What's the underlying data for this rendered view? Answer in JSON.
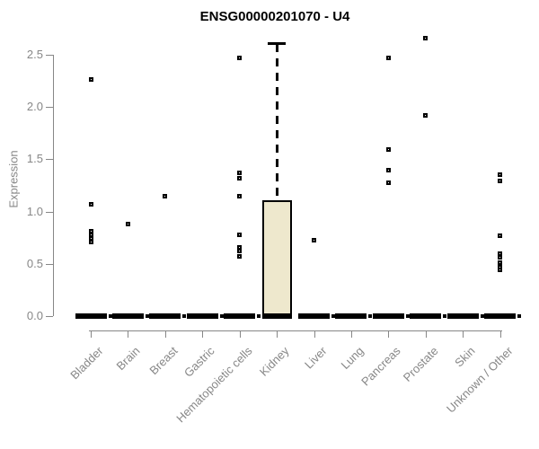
{
  "chart_data": {
    "type": "box",
    "title": "ENSG00000201070 - U4",
    "ylabel": "Expression",
    "xlabel": "",
    "ylim": [
      0,
      2.7
    ],
    "yticks": [
      "0.0",
      "0.5",
      "1.0",
      "1.5",
      "2.0",
      "2.5"
    ],
    "grid": false,
    "legend": "none",
    "categories": [
      "Bladder",
      "Brain",
      "Breast",
      "Gastric",
      "Hematopoietic cells",
      "Kidney",
      "Liver",
      "Lung",
      "Pancreas",
      "Prostate",
      "Skin",
      "Unknown / Other"
    ],
    "series": [
      {
        "category": "Bladder",
        "q1": 0,
        "median": 0,
        "q3": 0,
        "whisker_low": 0,
        "whisker_high": 0,
        "outliers": [
          2.26,
          1.07,
          0.81,
          0.78,
          0.74,
          0.71
        ]
      },
      {
        "category": "Brain",
        "q1": 0,
        "median": 0,
        "q3": 0,
        "whisker_low": 0,
        "whisker_high": 0,
        "outliers": [
          0.88
        ]
      },
      {
        "category": "Breast",
        "q1": 0,
        "median": 0,
        "q3": 0,
        "whisker_low": 0,
        "whisker_high": 0,
        "outliers": [
          1.15
        ]
      },
      {
        "category": "Gastric",
        "q1": 0,
        "median": 0,
        "q3": 0,
        "whisker_low": 0,
        "whisker_high": 0,
        "outliers": []
      },
      {
        "category": "Hematopoietic cells",
        "q1": 0,
        "median": 0,
        "q3": 0,
        "whisker_low": 0,
        "whisker_high": 0,
        "outliers": [
          2.47,
          1.37,
          1.32,
          1.15,
          0.78,
          0.66,
          0.62,
          0.57
        ]
      },
      {
        "category": "Kidney",
        "q1": 0,
        "median": 0,
        "q3": 1.11,
        "whisker_low": 0,
        "whisker_high": 2.61,
        "outliers": []
      },
      {
        "category": "Liver",
        "q1": 0,
        "median": 0,
        "q3": 0,
        "whisker_low": 0,
        "whisker_high": 0,
        "outliers": [
          0.73
        ]
      },
      {
        "category": "Lung",
        "q1": 0,
        "median": 0,
        "q3": 0,
        "whisker_low": 0,
        "whisker_high": 0,
        "outliers": []
      },
      {
        "category": "Pancreas",
        "q1": 0,
        "median": 0,
        "q3": 0,
        "whisker_low": 0,
        "whisker_high": 0,
        "outliers": [
          2.47,
          1.59,
          1.4,
          1.28
        ]
      },
      {
        "category": "Prostate",
        "q1": 0,
        "median": 0,
        "q3": 0,
        "whisker_low": 0,
        "whisker_high": 0,
        "outliers": [
          2.66,
          1.92
        ]
      },
      {
        "category": "Skin",
        "q1": 0,
        "median": 0,
        "q3": 0,
        "whisker_low": 0,
        "whisker_high": 0,
        "outliers": []
      },
      {
        "category": "Unknown / Other",
        "q1": 0,
        "median": 0,
        "q3": 0,
        "whisker_low": 0,
        "whisker_high": 0,
        "outliers": [
          1.35,
          1.29,
          0.77,
          0.6,
          0.56,
          0.51,
          0.47,
          0.44
        ]
      }
    ],
    "colors": {
      "box_fill": "#eee8cd",
      "box_border": "#000000",
      "marker": "#000000",
      "axis": "#878787",
      "tick_label": "#878787",
      "title": "#000000",
      "background": "#ffffff"
    }
  }
}
